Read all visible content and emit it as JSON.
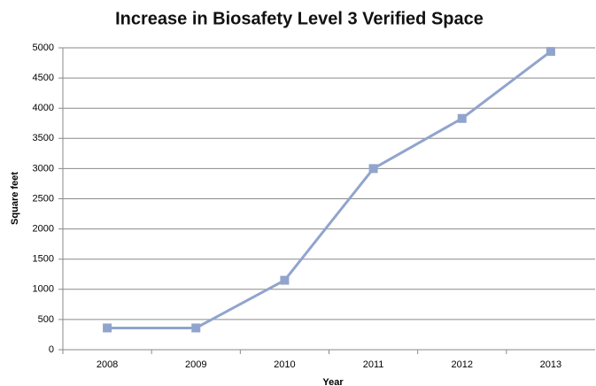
{
  "chart_data": {
    "type": "line",
    "title": "Increase in Biosafety Level 3 Verified Space",
    "x_label": "Year",
    "y_label": "Square feet",
    "categories": [
      "2008",
      "2009",
      "2010",
      "2011",
      "2012",
      "2013"
    ],
    "series": [
      {
        "name": "Square feet",
        "color": "#91a4cd",
        "values": [
          360,
          360,
          1150,
          3000,
          3830,
          4940
        ]
      }
    ],
    "ylim": [
      0,
      5000
    ],
    "yticks": [
      0,
      500,
      1000,
      1500,
      2000,
      2500,
      3000,
      3500,
      4000,
      4500,
      5000
    ],
    "grid": true
  }
}
